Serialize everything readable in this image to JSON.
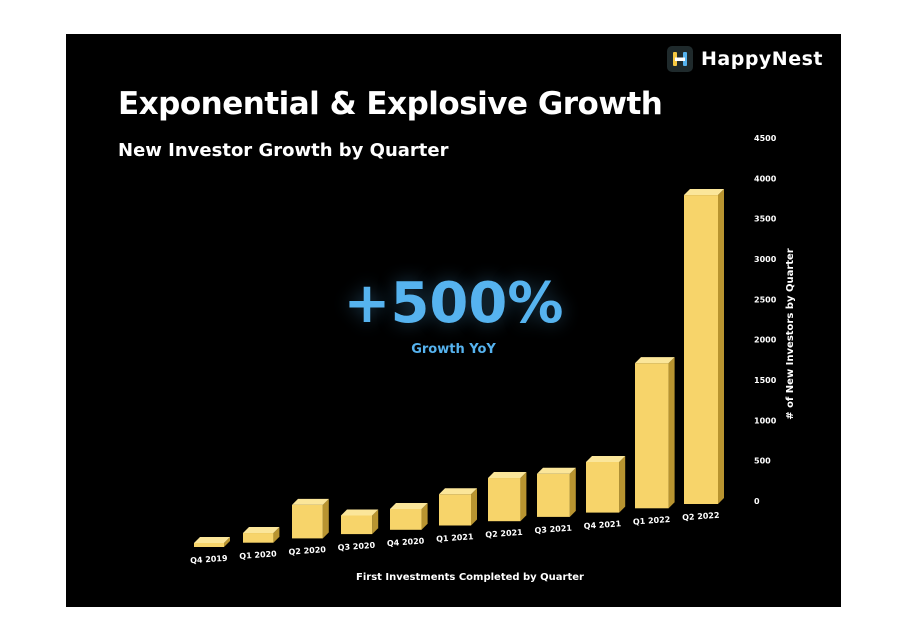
{
  "brand": {
    "name": "HappyNest",
    "icon": "h-logo-icon",
    "icon_color": "#f5c842"
  },
  "header": {
    "title": "Exponential & Explosive Growth",
    "subtitle": "New Investor Growth by Quarter"
  },
  "callout": {
    "value": "+500%",
    "label": "Growth YoY",
    "color": "#56b3ef"
  },
  "chart_data": {
    "type": "bar",
    "title": "Exponential & Explosive Growth",
    "subtitle": "New Investor Growth by Quarter",
    "xlabel": "First Investments Completed by Quarter",
    "ylabel": "# of New Investors by Quarter",
    "ylim": [
      0,
      4500
    ],
    "yticks": [
      0,
      500,
      1000,
      1500,
      2000,
      2500,
      3000,
      3500,
      4000,
      4500
    ],
    "categories": [
      "Q4 2019",
      "Q1 2020",
      "Q2 2020",
      "Q3 2020",
      "Q4 2020",
      "Q1 2021",
      "Q2 2021",
      "Q3 2021",
      "Q4 2021",
      "Q1 2022",
      "Q2 2022"
    ],
    "values": [
      50,
      130,
      450,
      250,
      280,
      420,
      580,
      580,
      680,
      1950,
      4150
    ],
    "bar_color": "#f7d46a",
    "style": "3d-perspective"
  }
}
